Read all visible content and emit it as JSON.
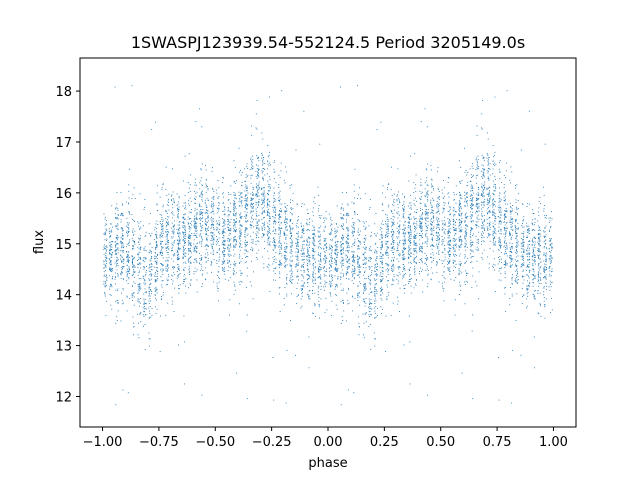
{
  "chart_data": {
    "type": "scatter",
    "title": "1SWASPJ123939.54-552124.5 Period 3205149.0s",
    "xlabel": "phase",
    "ylabel": "flux",
    "xlim": [
      -1.1,
      1.1
    ],
    "ylim": [
      11.4,
      18.65
    ],
    "xticks": [
      -1.0,
      -0.75,
      -0.5,
      -0.25,
      0.0,
      0.25,
      0.5,
      0.75,
      1.0
    ],
    "xtick_labels": [
      "−1.00",
      "−0.75",
      "−0.50",
      "−0.25",
      "0.00",
      "0.25",
      "0.50",
      "0.75",
      "1.00"
    ],
    "yticks": [
      12,
      13,
      14,
      15,
      16,
      17,
      18
    ],
    "ytick_labels": [
      "12",
      "13",
      "14",
      "15",
      "16",
      "17",
      "18"
    ],
    "grid": false,
    "marker_color": "#1f77b4",
    "phase_range": [
      -1.0,
      1.0
    ],
    "phase_profile": {
      "phase": [
        0.0,
        0.05,
        0.1,
        0.15,
        0.2,
        0.25,
        0.3,
        0.35,
        0.4,
        0.45,
        0.5,
        0.55,
        0.6,
        0.65,
        0.7,
        0.75,
        0.8,
        0.85,
        0.9,
        0.95,
        1.0
      ],
      "flux_center": [
        14.6,
        14.8,
        15.0,
        14.5,
        14.2,
        14.8,
        15.1,
        15.0,
        15.2,
        15.4,
        15.2,
        15.1,
        15.3,
        15.7,
        16.0,
        15.5,
        15.1,
        14.9,
        14.7,
        14.8,
        14.6
      ],
      "flux_spread": [
        0.45,
        0.5,
        0.55,
        0.6,
        0.55,
        0.5,
        0.5,
        0.5,
        0.5,
        0.5,
        0.5,
        0.5,
        0.55,
        0.6,
        0.55,
        0.5,
        0.5,
        0.5,
        0.5,
        0.5,
        0.45
      ]
    },
    "points_per_cycle": 3500,
    "outlier_fraction": 0.02
  }
}
